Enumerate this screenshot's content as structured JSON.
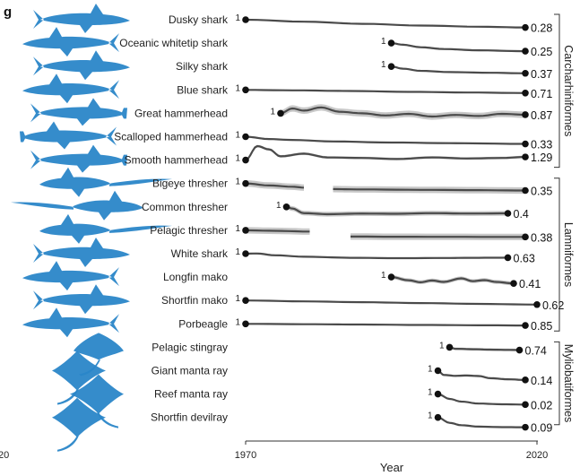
{
  "panel_letter": "g",
  "chart_data": {
    "type": "line",
    "xlabel": "Year",
    "xlim": [
      1970,
      2020
    ],
    "x_ticks": [
      "1970",
      "2020"
    ],
    "left_cut_tick": "20",
    "start_label": "1",
    "band_color": "#c8c8c8",
    "line_color": "#4a4a4a",
    "silhouette_color": "#2a86c8",
    "groups": [
      {
        "name": "Carcharhiniformes",
        "first": 0,
        "last": 6
      },
      {
        "name": "Lamniformes",
        "first": 7,
        "last": 13
      },
      {
        "name": "Myliobatiformes",
        "first": 14,
        "last": 17
      }
    ],
    "series": [
      {
        "name": "Dusky shark",
        "silhouette": "shark",
        "start": 1970,
        "end": 2018,
        "end_value": "0.28",
        "band": 0.03,
        "points": [
          [
            1970,
            1
          ],
          [
            1980,
            0.82
          ],
          [
            1990,
            0.62
          ],
          [
            2000,
            0.46
          ],
          [
            2010,
            0.35
          ],
          [
            2018,
            0.28
          ]
        ]
      },
      {
        "name": "Oceanic whitetip shark",
        "silhouette": "shark",
        "start": 1995,
        "end": 2018,
        "end_value": "0.25",
        "band": 0.09,
        "points": [
          [
            1995,
            1
          ],
          [
            1997,
            0.85
          ],
          [
            2000,
            0.62
          ],
          [
            2004,
            0.45
          ],
          [
            2010,
            0.33
          ],
          [
            2018,
            0.25
          ]
        ]
      },
      {
        "name": "Silky shark",
        "silhouette": "shark",
        "start": 1995,
        "end": 2018,
        "end_value": "0.37",
        "band": 0.07,
        "points": [
          [
            1995,
            1
          ],
          [
            1997,
            0.8
          ],
          [
            2000,
            0.6
          ],
          [
            2005,
            0.48
          ],
          [
            2012,
            0.42
          ],
          [
            2018,
            0.37
          ]
        ]
      },
      {
        "name": "Blue shark",
        "silhouette": "shark",
        "start": 1970,
        "end": 2018,
        "end_value": "0.71",
        "band": 0.03,
        "points": [
          [
            1970,
            1
          ],
          [
            1978,
            0.96
          ],
          [
            1988,
            0.9
          ],
          [
            1998,
            0.82
          ],
          [
            2008,
            0.76
          ],
          [
            2018,
            0.71
          ]
        ]
      },
      {
        "name": "Great hammerhead",
        "silhouette": "hammerhead",
        "start": 1976,
        "end": 2018,
        "end_value": "0.87",
        "band": 0.3,
        "points": [
          [
            1976,
            1
          ],
          [
            1978,
            1.45
          ],
          [
            1980,
            1.25
          ],
          [
            1983,
            1.55
          ],
          [
            1986,
            1.15
          ],
          [
            1990,
            1.0
          ],
          [
            1994,
            0.8
          ],
          [
            1998,
            0.95
          ],
          [
            2002,
            0.7
          ],
          [
            2006,
            0.85
          ],
          [
            2010,
            0.75
          ],
          [
            2014,
            0.95
          ],
          [
            2018,
            0.87
          ]
        ]
      },
      {
        "name": "Scalloped hammerhead",
        "silhouette": "hammerhead",
        "start": 1970,
        "end": 2018,
        "end_value": "0.33",
        "band": 0.08,
        "points": [
          [
            1970,
            1
          ],
          [
            1974,
            0.78
          ],
          [
            1978,
            0.7
          ],
          [
            1985,
            0.56
          ],
          [
            1995,
            0.46
          ],
          [
            2005,
            0.4
          ],
          [
            2018,
            0.33
          ]
        ]
      },
      {
        "name": "Smooth hammerhead",
        "silhouette": "hammerhead",
        "start": 1970,
        "end": 2018,
        "end_value": "1.29",
        "band": 0.12,
        "points": [
          [
            1970,
            1
          ],
          [
            1972,
            2.3
          ],
          [
            1974,
            2.0
          ],
          [
            1976,
            1.35
          ],
          [
            1980,
            1.6
          ],
          [
            1984,
            1.25
          ],
          [
            1990,
            1.2
          ],
          [
            1996,
            1.1
          ],
          [
            2002,
            1.25
          ],
          [
            2008,
            1.15
          ],
          [
            2014,
            1.2
          ],
          [
            2018,
            1.29
          ]
        ]
      },
      {
        "name": "Bigeye thresher",
        "silhouette": "thresher",
        "start": 1970,
        "end": 2018,
        "end_value": "0.35",
        "band": 0.3,
        "gap": [
          1980,
          1985
        ],
        "points": [
          [
            1970,
            1
          ],
          [
            1974,
            0.82
          ],
          [
            1978,
            0.7
          ],
          [
            1980,
            0.62
          ],
          [
            1985,
            0.48
          ],
          [
            1990,
            0.45
          ],
          [
            2000,
            0.41
          ],
          [
            2010,
            0.38
          ],
          [
            2018,
            0.35
          ]
        ]
      },
      {
        "name": "Common thresher",
        "silhouette": "thresher",
        "start": 1977,
        "end": 2015,
        "end_value": "0.4",
        "band": 0.22,
        "points": [
          [
            1977,
            1
          ],
          [
            1978,
            0.85
          ],
          [
            1980,
            0.42
          ],
          [
            1984,
            0.32
          ],
          [
            1990,
            0.38
          ],
          [
            1996,
            0.36
          ],
          [
            2002,
            0.42
          ],
          [
            2008,
            0.38
          ],
          [
            2015,
            0.4
          ]
        ]
      },
      {
        "name": "Pelagic thresher",
        "silhouette": "thresher",
        "start": 1970,
        "end": 2018,
        "end_value": "0.38",
        "band": 0.3,
        "gap": [
          1981,
          1988
        ],
        "points": [
          [
            1970,
            1
          ],
          [
            1975,
            0.95
          ],
          [
            1981,
            0.88
          ],
          [
            1988,
            0.42
          ],
          [
            1995,
            0.4
          ],
          [
            2005,
            0.39
          ],
          [
            2018,
            0.38
          ]
        ]
      },
      {
        "name": "White shark",
        "silhouette": "shark",
        "start": 1970,
        "end": 2015,
        "end_value": "0.63",
        "band": 0.08,
        "points": [
          [
            1970,
            1
          ],
          [
            1972,
            1.02
          ],
          [
            1975,
            0.85
          ],
          [
            1980,
            0.72
          ],
          [
            1988,
            0.62
          ],
          [
            1996,
            0.58
          ],
          [
            2004,
            0.6
          ],
          [
            2010,
            0.62
          ],
          [
            2015,
            0.63
          ]
        ]
      },
      {
        "name": "Longfin mako",
        "silhouette": "shark",
        "start": 1995,
        "end": 2016,
        "end_value": "0.41",
        "band": 0.18,
        "points": [
          [
            1995,
            1
          ],
          [
            1998,
            0.7
          ],
          [
            2000,
            0.52
          ],
          [
            2002,
            0.68
          ],
          [
            2004,
            0.55
          ],
          [
            2007,
            0.88
          ],
          [
            2009,
            0.62
          ],
          [
            2011,
            0.72
          ],
          [
            2013,
            0.55
          ],
          [
            2016,
            0.41
          ]
        ]
      },
      {
        "name": "Shortfin mako",
        "silhouette": "shark",
        "start": 1970,
        "end": 2020,
        "end_value": "0.62",
        "band": 0.04,
        "points": [
          [
            1970,
            1
          ],
          [
            1980,
            0.92
          ],
          [
            1990,
            0.84
          ],
          [
            2000,
            0.76
          ],
          [
            2010,
            0.68
          ],
          [
            2020,
            0.62
          ]
        ]
      },
      {
        "name": "Porbeagle",
        "silhouette": "shark",
        "start": 1970,
        "end": 2018,
        "end_value": "0.85",
        "band": 0.04,
        "points": [
          [
            1970,
            1
          ],
          [
            1980,
            0.97
          ],
          [
            1990,
            0.94
          ],
          [
            2000,
            0.9
          ],
          [
            2010,
            0.87
          ],
          [
            2018,
            0.85
          ]
        ]
      },
      {
        "name": "Pelagic stingray",
        "silhouette": "stingray",
        "start": 2005,
        "end": 2017,
        "end_value": "0.74",
        "band": 0.12,
        "points": [
          [
            2005,
            1
          ],
          [
            2006,
            0.86
          ],
          [
            2009,
            0.82
          ],
          [
            2012,
            0.78
          ],
          [
            2015,
            0.76
          ],
          [
            2017,
            0.74
          ]
        ]
      },
      {
        "name": "Giant manta ray",
        "silhouette": "manta",
        "start": 2003,
        "end": 2018,
        "end_value": "0.14",
        "band": 0.1,
        "points": [
          [
            2003,
            1
          ],
          [
            2004,
            0.6
          ],
          [
            2006,
            0.52
          ],
          [
            2008,
            0.55
          ],
          [
            2010,
            0.5
          ],
          [
            2012,
            0.3
          ],
          [
            2015,
            0.2
          ],
          [
            2018,
            0.14
          ]
        ]
      },
      {
        "name": "Reef manta ray",
        "silhouette": "manta",
        "start": 2003,
        "end": 2018,
        "end_value": "0.02",
        "band": 0.06,
        "points": [
          [
            2003,
            1
          ],
          [
            2005,
            0.55
          ],
          [
            2007,
            0.3
          ],
          [
            2010,
            0.12
          ],
          [
            2014,
            0.05
          ],
          [
            2018,
            0.02
          ]
        ]
      },
      {
        "name": "Shortfin devilray",
        "silhouette": "manta",
        "start": 2003,
        "end": 2018,
        "end_value": "0.09",
        "band": 0.08,
        "points": [
          [
            2003,
            1
          ],
          [
            2005,
            0.5
          ],
          [
            2007,
            0.28
          ],
          [
            2010,
            0.15
          ],
          [
            2014,
            0.1
          ],
          [
            2018,
            0.09
          ]
        ]
      }
    ]
  }
}
